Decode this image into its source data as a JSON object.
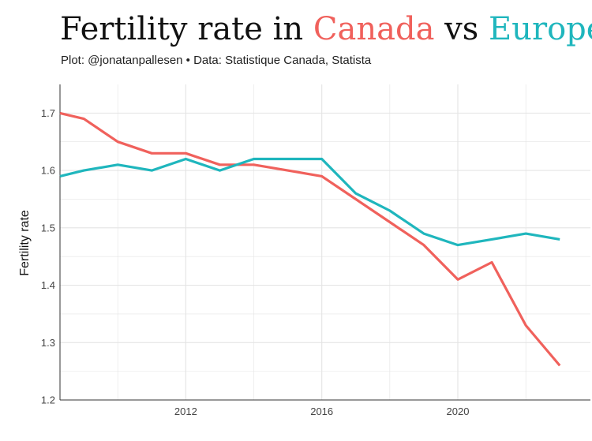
{
  "title": {
    "prefix": "Fertility rate in ",
    "series1": "Canada",
    "middle": " vs ",
    "series2": "Europe"
  },
  "subtitle": "Plot: @jonatanpallesen • Data: Statistique Canada, Statista",
  "colors": {
    "canada": "#f0615c",
    "europe": "#1fb6bd",
    "grid": "#e4e4e4",
    "axis": "#333333"
  },
  "chart_data": {
    "type": "line",
    "title": "Fertility rate in Canada vs Europe",
    "xlabel": "",
    "ylabel": "Fertility rate",
    "xlim": [
      2008.3,
      2023.9
    ],
    "ylim": [
      1.2,
      1.75
    ],
    "x_ticks": [
      2012,
      2016,
      2020
    ],
    "y_ticks": [
      1.2,
      1.3,
      1.4,
      1.5,
      1.6,
      1.7
    ],
    "grid": true,
    "legend": "none (series named by colored words in title)",
    "series": [
      {
        "name": "Canada",
        "color": "#f0615c",
        "x": [
          2008.3,
          2009,
          2010,
          2011,
          2012,
          2013,
          2014,
          2015,
          2016,
          2017,
          2018,
          2019,
          2020,
          2021,
          2022,
          2023
        ],
        "values": [
          1.7,
          1.69,
          1.65,
          1.63,
          1.63,
          1.61,
          1.61,
          1.6,
          1.59,
          1.55,
          1.51,
          1.47,
          1.41,
          1.44,
          1.33,
          1.26
        ]
      },
      {
        "name": "Europe",
        "color": "#1fb6bd",
        "x": [
          2008.3,
          2009,
          2010,
          2011,
          2012,
          2013,
          2014,
          2015,
          2016,
          2017,
          2018,
          2019,
          2020,
          2021,
          2022,
          2023
        ],
        "values": [
          1.59,
          1.6,
          1.61,
          1.6,
          1.62,
          1.6,
          1.62,
          1.62,
          1.62,
          1.56,
          1.53,
          1.49,
          1.47,
          1.48,
          1.49,
          1.48
        ]
      }
    ]
  }
}
